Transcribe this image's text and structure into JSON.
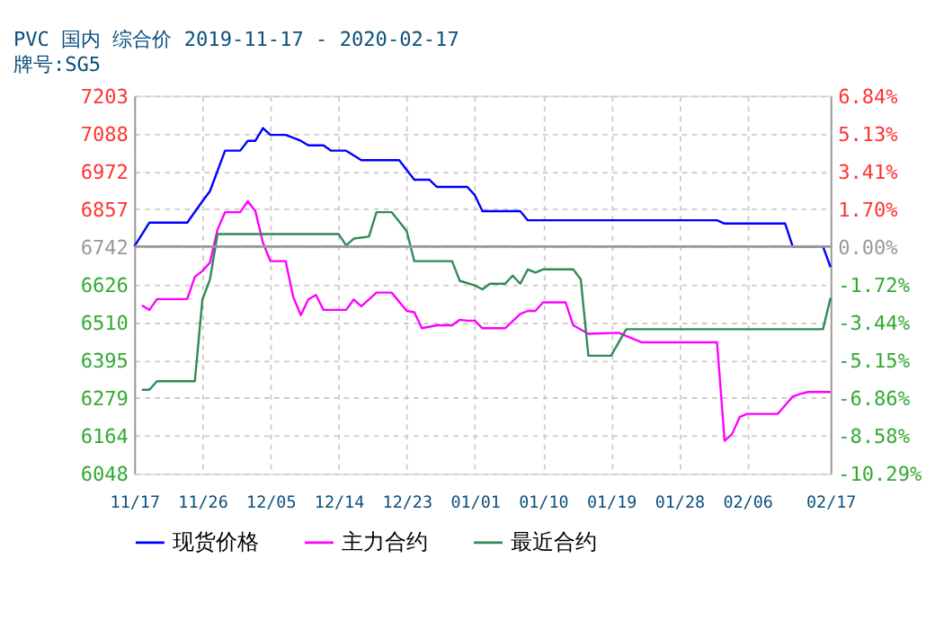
{
  "chart_data": {
    "type": "line",
    "title": "PVC  国内  综合价  2019-11-17 - 2020-02-17",
    "subtitle": "牌号:SG5",
    "xlim": [
      "2019-11-17",
      "2020-02-17"
    ],
    "xticks": [
      {
        "value": "2019-11-17",
        "label": "11/17"
      },
      {
        "value": "2019-11-26",
        "label": "11/26"
      },
      {
        "value": "2019-12-05",
        "label": "12/05"
      },
      {
        "value": "2019-12-14",
        "label": "12/14"
      },
      {
        "value": "2019-12-23",
        "label": "12/23"
      },
      {
        "value": "2020-01-01",
        "label": "01/01"
      },
      {
        "value": "2020-01-10",
        "label": "01/10"
      },
      {
        "value": "2020-01-19",
        "label": "01/19"
      },
      {
        "value": "2020-01-28",
        "label": "01/28"
      },
      {
        "value": "2020-02-06",
        "label": "02/06"
      },
      {
        "value": "2020-02-17",
        "label": "02/17"
      }
    ],
    "ylim": [
      6048,
      7203
    ],
    "yticks": [
      6048,
      6164,
      6279,
      6395,
      6510,
      6626,
      6742,
      6857,
      6972,
      7088,
      7203
    ],
    "y2lim": [
      -10.29,
      6.84
    ],
    "y2ticks": [
      {
        "value": -10.29,
        "label": "-10.29%"
      },
      {
        "value": -8.58,
        "label": "-8.58%"
      },
      {
        "value": -6.86,
        "label": "-6.86%"
      },
      {
        "value": -5.15,
        "label": "-5.15%"
      },
      {
        "value": -3.44,
        "label": "-3.44%"
      },
      {
        "value": -1.72,
        "label": "-1.72%"
      },
      {
        "value": 0,
        "label": "0.00%"
      },
      {
        "value": 1.7,
        "label": "1.70%"
      },
      {
        "value": 3.41,
        "label": "3.41%"
      },
      {
        "value": 5.13,
        "label": "5.13%"
      },
      {
        "value": 6.84,
        "label": "6.84%"
      }
    ],
    "grid": true,
    "legend": "bottom",
    "line_style": "solid",
    "marker": "none",
    "ref_lines": [
      {
        "axis": "y2",
        "value": 0,
        "color": "#999999"
      }
    ],
    "series": [
      {
        "name": "现货价格",
        "color": "#0000ff",
        "x": [
          "2019-11-17",
          "2019-11-19",
          "2019-11-24",
          "2019-11-26",
          "2019-11-27",
          "2019-11-29",
          "2019-12-01",
          "2019-12-02",
          "2019-12-03",
          "2019-12-04",
          "2019-12-05",
          "2019-12-07",
          "2019-12-09",
          "2019-12-10",
          "2019-12-12",
          "2019-12-13",
          "2019-12-15",
          "2019-12-17",
          "2019-12-22",
          "2019-12-24",
          "2019-12-26",
          "2019-12-27",
          "2019-12-31",
          "2020-01-01",
          "2020-01-02",
          "2020-01-07",
          "2020-01-08",
          "2020-02-02",
          "2020-02-03",
          "2020-02-11",
          "2020-02-12",
          "2020-02-16",
          "2020-02-17"
        ],
        "values": [
          6742,
          6815,
          6815,
          6880,
          6911,
          7035,
          7035,
          7065,
          7065,
          7104,
          7083,
          7083,
          7065,
          7051,
          7051,
          7035,
          7035,
          7006,
          7006,
          6946,
          6946,
          6924,
          6924,
          6899,
          6850,
          6850,
          6822,
          6822,
          6812,
          6812,
          6742,
          6742,
          6679
        ]
      },
      {
        "name": "主力合约",
        "color": "#ff00ff",
        "x": [
          "2019-11-18",
          "2019-11-19",
          "2019-11-20",
          "2019-11-24",
          "2019-11-25",
          "2019-11-26",
          "2019-11-27",
          "2019-11-28",
          "2019-11-29",
          "2019-12-01",
          "2019-12-02",
          "2019-12-03",
          "2019-12-04",
          "2019-12-05",
          "2019-12-07",
          "2019-12-08",
          "2019-12-09",
          "2019-12-10",
          "2019-12-11",
          "2019-12-12",
          "2019-12-15",
          "2019-12-16",
          "2019-12-17",
          "2019-12-19",
          "2019-12-21",
          "2019-12-23",
          "2019-12-24",
          "2019-12-25",
          "2019-12-27",
          "2019-12-29",
          "2019-12-30",
          "2019-12-31",
          "2020-01-01",
          "2020-01-02",
          "2020-01-05",
          "2020-01-07",
          "2020-01-08",
          "2020-01-09",
          "2020-01-10",
          "2020-01-13",
          "2020-01-14",
          "2020-01-16",
          "2020-01-20",
          "2020-01-23",
          "2020-02-02",
          "2020-02-03",
          "2020-02-04",
          "2020-02-05",
          "2020-02-06",
          "2020-02-10",
          "2020-02-12",
          "2020-02-13",
          "2020-02-14",
          "2020-02-17"
        ],
        "values": [
          6562,
          6548,
          6581,
          6581,
          6649,
          6667,
          6693,
          6794,
          6847,
          6847,
          6880,
          6850,
          6754,
          6697,
          6697,
          6588,
          6532,
          6580,
          6594,
          6548,
          6548,
          6580,
          6559,
          6601,
          6601,
          6545,
          6541,
          6492,
          6501,
          6501,
          6518,
          6515,
          6515,
          6492,
          6492,
          6536,
          6545,
          6545,
          6571,
          6571,
          6501,
          6475,
          6478,
          6449,
          6449,
          6148,
          6169,
          6221,
          6230,
          6230,
          6283,
          6291,
          6297,
          6297
        ]
      },
      {
        "name": "最近合约",
        "color": "#2e8b57",
        "x": [
          "2019-11-18",
          "2019-11-19",
          "2019-11-20",
          "2019-11-25",
          "2019-11-26",
          "2019-11-27",
          "2019-11-28",
          "2019-12-14",
          "2019-12-15",
          "2019-12-16",
          "2019-12-18",
          "2019-12-19",
          "2019-12-21",
          "2019-12-23",
          "2019-12-24",
          "2019-12-29",
          "2019-12-30",
          "2020-01-01",
          "2020-01-02",
          "2020-01-03",
          "2020-01-05",
          "2020-01-06",
          "2020-01-07",
          "2020-01-08",
          "2020-01-09",
          "2020-01-10",
          "2020-01-14",
          "2020-01-15",
          "2020-01-16",
          "2020-01-19",
          "2020-01-21",
          "2020-02-16",
          "2020-02-17"
        ],
        "values": [
          6304,
          6304,
          6330,
          6330,
          6580,
          6641,
          6780,
          6780,
          6745,
          6766,
          6772,
          6847,
          6847,
          6789,
          6697,
          6697,
          6637,
          6623,
          6611,
          6628,
          6628,
          6653,
          6628,
          6672,
          6662,
          6672,
          6672,
          6641,
          6408,
          6408,
          6489,
          6489,
          6585
        ]
      }
    ]
  }
}
